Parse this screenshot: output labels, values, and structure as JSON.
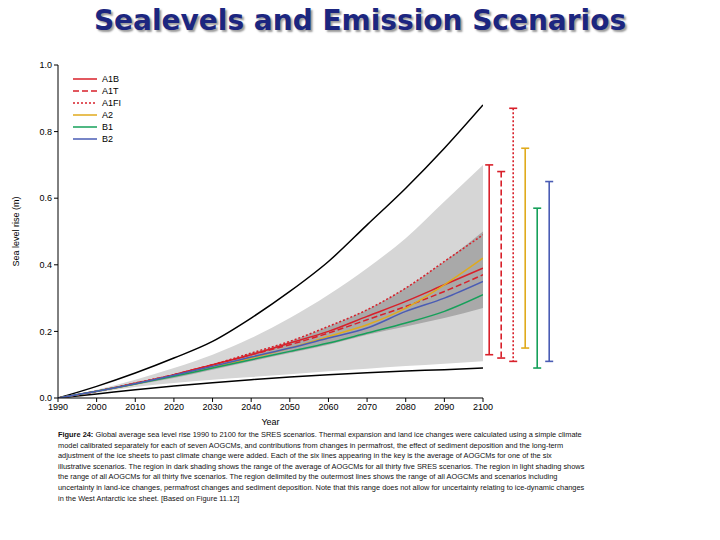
{
  "chart_data": {
    "type": "line",
    "title": "Sealevels and Emission Scenarios",
    "x_label": "Year",
    "y_label": "Sea level rise (m)",
    "x": [
      1990,
      2000,
      2010,
      2020,
      2030,
      2040,
      2050,
      2060,
      2070,
      2080,
      2090,
      2100
    ],
    "xlim": [
      1990,
      2100
    ],
    "xticks": [
      1990,
      2000,
      2010,
      2020,
      2030,
      2040,
      2050,
      2060,
      2070,
      2080,
      2090,
      2100
    ],
    "ylim": [
      0,
      1
    ],
    "yticks": [
      {
        "value": 0,
        "label": "0.0"
      },
      {
        "value": 0.2,
        "label": "0.2"
      },
      {
        "value": 0.4,
        "label": "0.4"
      },
      {
        "value": 0.6,
        "label": "0.6"
      },
      {
        "value": 0.8,
        "label": "0.8"
      },
      {
        "value": 1,
        "label": "1.0"
      }
    ],
    "grid": false,
    "legend": "upper left",
    "series": [
      {
        "name": "A1B",
        "color": "#d8202a",
        "line_style": "solid",
        "values": [
          0,
          0.02,
          0.044,
          0.07,
          0.1,
          0.13,
          0.165,
          0.2,
          0.245,
          0.29,
          0.34,
          0.39
        ],
        "range": [
          0.13,
          0.7
        ]
      },
      {
        "name": "A1T",
        "color": "#d8202a",
        "line_style": "dashed",
        "values": [
          0,
          0.02,
          0.044,
          0.07,
          0.1,
          0.13,
          0.16,
          0.195,
          0.235,
          0.275,
          0.32,
          0.37
        ],
        "range": [
          0.12,
          0.68
        ]
      },
      {
        "name": "A1FI",
        "color": "#d8202a",
        "line_style": "dotted",
        "values": [
          0,
          0.02,
          0.045,
          0.07,
          0.1,
          0.135,
          0.17,
          0.215,
          0.265,
          0.33,
          0.41,
          0.49
        ],
        "range": [
          0.11,
          0.87
        ]
      },
      {
        "name": "A2",
        "color": "#e0aa1c",
        "line_style": "solid",
        "values": [
          0,
          0.02,
          0.042,
          0.067,
          0.093,
          0.12,
          0.15,
          0.185,
          0.22,
          0.27,
          0.34,
          0.42
        ],
        "range": [
          0.15,
          0.75
        ]
      },
      {
        "name": "B1",
        "color": "#16a05a",
        "line_style": "solid",
        "values": [
          0,
          0.02,
          0.042,
          0.065,
          0.09,
          0.115,
          0.14,
          0.165,
          0.195,
          0.225,
          0.26,
          0.31
        ],
        "range": [
          0.09,
          0.57
        ]
      },
      {
        "name": "B2",
        "color": "#4a5cb4",
        "line_style": "solid",
        "values": [
          0,
          0.02,
          0.043,
          0.068,
          0.095,
          0.123,
          0.15,
          0.18,
          0.21,
          0.26,
          0.3,
          0.35
        ],
        "range": [
          0.11,
          0.65
        ]
      }
    ],
    "shading": [
      {
        "color": "#d6d6d6",
        "lower": [
          0,
          0.016,
          0.033,
          0.045,
          0.055,
          0.063,
          0.071,
          0.08,
          0.088,
          0.096,
          0.103,
          0.11
        ],
        "upper": [
          0,
          0.025,
          0.055,
          0.09,
          0.13,
          0.18,
          0.24,
          0.31,
          0.39,
          0.48,
          0.59,
          0.7
        ]
      },
      {
        "color": "#a9a9a9",
        "lower": [
          0,
          0.02,
          0.04,
          0.06,
          0.085,
          0.11,
          0.135,
          0.16,
          0.19,
          0.215,
          0.24,
          0.27
        ],
        "upper": [
          0,
          0.022,
          0.045,
          0.07,
          0.1,
          0.135,
          0.17,
          0.215,
          0.265,
          0.33,
          0.41,
          0.5
        ]
      }
    ],
    "outer_lines": {
      "color": "#000000",
      "upper": [
        0,
        0.035,
        0.075,
        0.12,
        0.17,
        0.24,
        0.32,
        0.41,
        0.52,
        0.63,
        0.75,
        0.88
      ],
      "lower": [
        0,
        0.012,
        0.025,
        0.036,
        0.046,
        0.055,
        0.063,
        0.07,
        0.076,
        0.081,
        0.085,
        0.09
      ]
    },
    "caption_label": "Figure 24:",
    "caption": "Global average sea level rise 1990 to 2100 for the SRES scenarios. Thermal expansion and land ice changes were calculated using a simple climate model calibrated separately for each of seven AOGCMs, and contributions from changes in permafrost, the effect of sediment deposition and the long-term adjustment of the ice sheets to past climate change were added. Each of the six lines appearing in the key is the average of AOGCMs for one of the six illustrative scenarios. The region in dark shading shows the range of the average of AOGCMs for all thirty five SRES scenarios. The region in light shading shows the range of all AOGCMs for all thirty five scenarios. The region delimited by the outermost lines shows the range of all AOGCMs and scenarios including uncertainty in land-ice changes, permafrost changes and sediment deposition. Note that this range does not allow for uncertainty relating to ice-dynamic changes in the West Antarctic ice sheet. [Based on Figure 11.12]"
  }
}
